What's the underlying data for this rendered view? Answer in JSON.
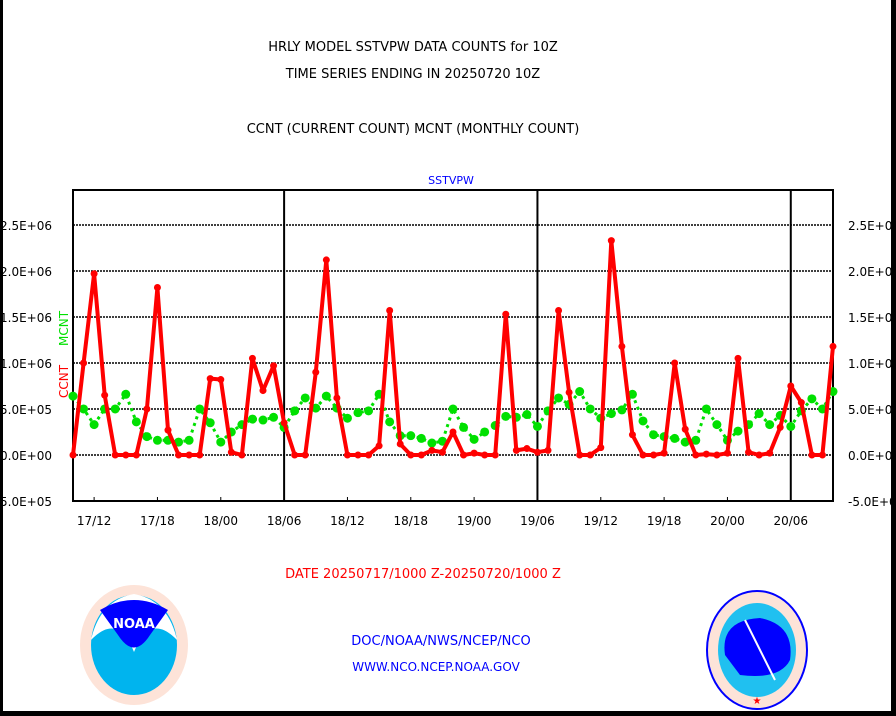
{
  "titles": {
    "line1": "HRLY MODEL SSTVPW DATA COUNTS for 10Z",
    "line2": "TIME SERIES ENDING IN 20250720 10Z",
    "line3": "CCNT (CURRENT COUNT) MCNT (MONTHLY COUNT)"
  },
  "footer": {
    "date_range": "DATE 20250717/1000 Z-20250720/1000 Z",
    "org": "DOC/NOAA/NWS/NCEP/NCO",
    "url": "WWW.NCO.NCEP.NOAA.GOV",
    "logo_left": "NOAA - NATIONAL OCEANIC AND ATMOSPHERIC ADMINISTRATION - U.S. DEPARTMENT OF COMMERCE",
    "logo_right": "NATIONAL WEATHER SERVICE"
  },
  "colors": {
    "ccnt": "#ff0000",
    "mcnt": "#00e000",
    "subtitle": "#0000ff"
  },
  "chart_data": {
    "type": "line",
    "title": "SSTVPW",
    "xlabel": "DATE 20250717/1000 Z-20250720/1000 Z",
    "ylabel_left": "CCNT",
    "ylabel_right": "MCNT",
    "ylim": [
      -500000,
      2880000
    ],
    "yticks": [
      "-5.0E+05",
      "0.0E+00",
      "5.0E+05",
      "1.0E+06",
      "1.5E+06",
      "2.0E+06",
      "2.5E+06"
    ],
    "ytick_values": [
      -500000,
      0,
      500000,
      1000000,
      1500000,
      2000000,
      2500000
    ],
    "x_start": "17/10",
    "x_step_hours": 1,
    "xticks": [
      "17/12",
      "17/18",
      "18/00",
      "18/06",
      "18/12",
      "18/18",
      "19/00",
      "19/06",
      "19/12",
      "19/18",
      "20/00",
      "20/06"
    ],
    "xtick_index": [
      2,
      8,
      14,
      20,
      26,
      32,
      38,
      44,
      50,
      56,
      62,
      68
    ],
    "major_lines_index": [
      20,
      44,
      68
    ],
    "grid": true,
    "series": [
      {
        "name": "CCNT",
        "color": "#ff0000",
        "values": [
          0,
          1000000,
          1970000,
          650000,
          0,
          0,
          0,
          500000,
          1820000,
          270000,
          0,
          0,
          0,
          830000,
          820000,
          30000,
          0,
          1050000,
          700000,
          970000,
          350000,
          0,
          0,
          900000,
          2120000,
          620000,
          0,
          0,
          0,
          100000,
          1570000,
          120000,
          0,
          0,
          50000,
          30000,
          250000,
          0,
          20000,
          0,
          0,
          1530000,
          50000,
          70000,
          30000,
          50000,
          1570000,
          680000,
          0,
          0,
          80000,
          2330000,
          1180000,
          220000,
          0,
          0,
          20000,
          1000000,
          280000,
          0,
          10000,
          0,
          20000,
          1050000,
          30000,
          0,
          20000,
          300000,
          750000,
          570000,
          0,
          0,
          1180000
        ]
      },
      {
        "name": "MCNT",
        "color": "#00e000",
        "values": [
          640000,
          500000,
          330000,
          500000,
          500000,
          660000,
          360000,
          200000,
          160000,
          160000,
          140000,
          160000,
          500000,
          350000,
          140000,
          250000,
          330000,
          390000,
          380000,
          410000,
          300000,
          480000,
          620000,
          510000,
          640000,
          510000,
          400000,
          460000,
          480000,
          660000,
          360000,
          210000,
          210000,
          180000,
          130000,
          150000,
          500000,
          300000,
          170000,
          250000,
          320000,
          420000,
          410000,
          440000,
          310000,
          480000,
          620000,
          550000,
          690000,
          500000,
          400000,
          450000,
          490000,
          660000,
          370000,
          220000,
          200000,
          180000,
          140000,
          160000,
          500000,
          330000,
          160000,
          260000,
          330000,
          450000,
          330000,
          430000,
          310000,
          480000,
          610000,
          500000,
          690000
        ]
      }
    ]
  }
}
